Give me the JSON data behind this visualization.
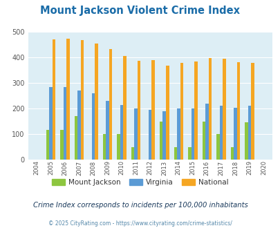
{
  "title": "Mount Jackson Violent Crime Index",
  "years": [
    2004,
    2005,
    2006,
    2007,
    2008,
    2009,
    2010,
    2011,
    2012,
    2013,
    2014,
    2015,
    2016,
    2017,
    2018,
    2019,
    2020
  ],
  "mount_jackson": [
    null,
    115,
    115,
    170,
    null,
    100,
    100,
    50,
    null,
    150,
    50,
    50,
    148,
    100,
    50,
    145,
    null
  ],
  "virginia": [
    null,
    285,
    285,
    270,
    260,
    230,
    215,
    200,
    195,
    190,
    200,
    200,
    220,
    210,
    202,
    210,
    null
  ],
  "national": [
    null,
    470,
    474,
    467,
    455,
    432,
    405,
    388,
    390,
    368,
    378,
    384,
    398,
    394,
    381,
    380,
    null
  ],
  "colors": {
    "mount_jackson": "#8dc63f",
    "virginia": "#5b9bd5",
    "national": "#f5a623"
  },
  "bar_width": 0.22,
  "ylim": [
    0,
    500
  ],
  "yticks": [
    0,
    100,
    200,
    300,
    400,
    500
  ],
  "plot_bg": "#ddeef5",
  "title_color": "#1a6ca8",
  "subtitle": "Crime Index corresponds to incidents per 100,000 inhabitants",
  "footer": "© 2025 CityRating.com - https://www.cityrating.com/crime-statistics/",
  "subtitle_color": "#1a3a5c",
  "footer_color": "#5588aa",
  "legend_labels": [
    "Mount Jackson",
    "Virginia",
    "National"
  ]
}
